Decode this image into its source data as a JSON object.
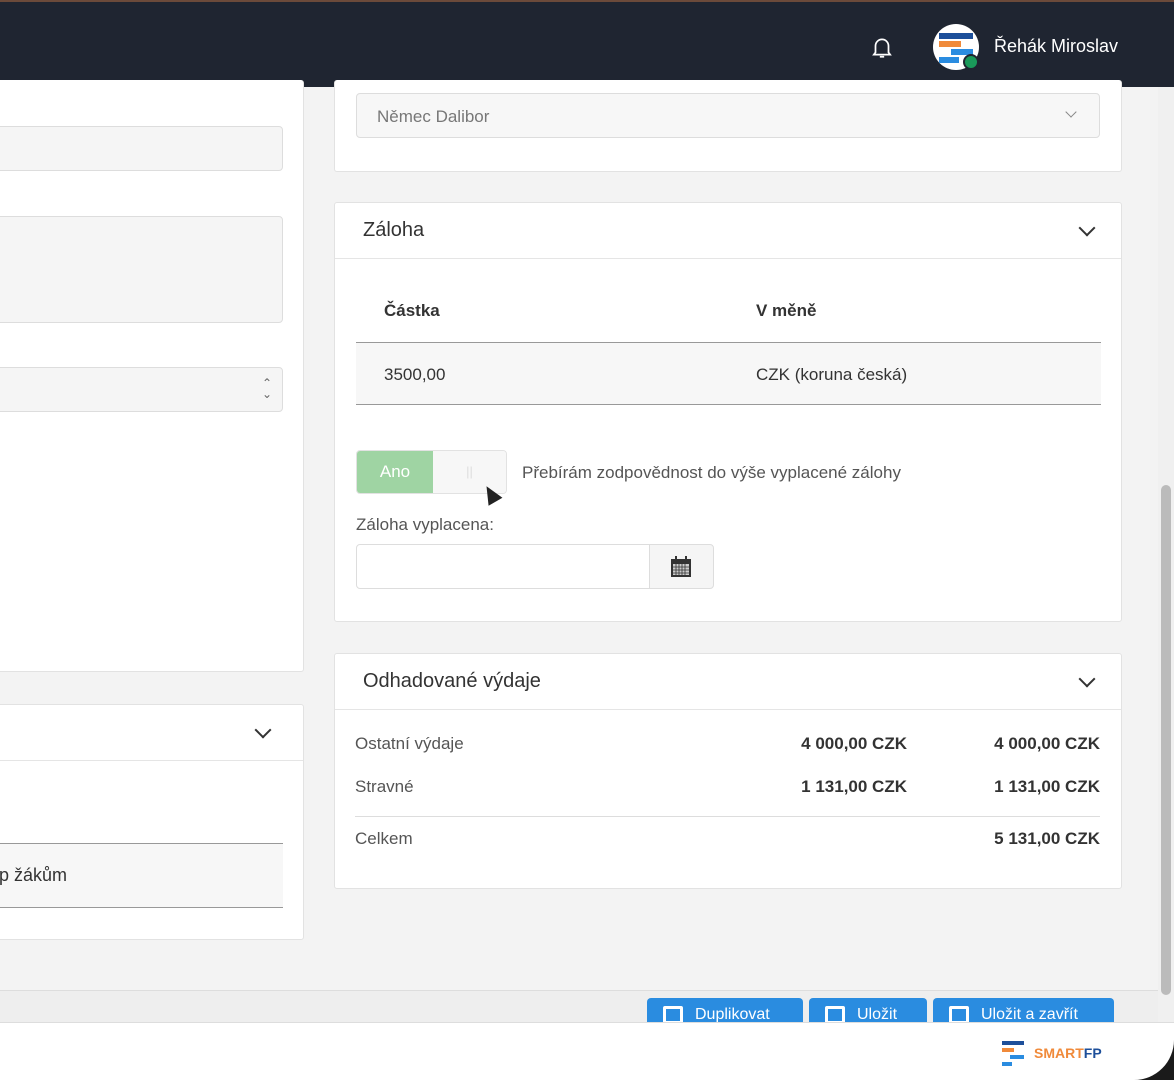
{
  "header": {
    "user_name": "Řehák Miroslav",
    "bell_icon": "bell-icon",
    "status": "online"
  },
  "top_card": {
    "select_value": "Němec Dalibor"
  },
  "left_panel": {
    "row_text": "p žákům"
  },
  "advance": {
    "title": "Záloha",
    "columns": [
      "Částka",
      "V měně"
    ],
    "rows": [
      [
        "3500,00",
        "CZK (koruna česká)"
      ]
    ],
    "toggle": {
      "on_label": "Ano",
      "off_label": "||",
      "state": "on"
    },
    "toggle_label": "Přebírám zodpovědnost do výše vyplacené zálohy",
    "paid_label": "Záloha vyplacena:",
    "paid_value": ""
  },
  "expenses": {
    "title": "Odhadované výdaje",
    "rows": [
      {
        "label": "Ostatní výdaje",
        "v1": "4 000,00 CZK",
        "v2": "4 000,00 CZK"
      },
      {
        "label": "Stravné",
        "v1": "1 131,00 CZK",
        "v2": "1 131,00 CZK"
      }
    ],
    "total_label": "Celkem",
    "total_value": "5 131,00 CZK"
  },
  "footer": {
    "buttons": [
      "Duplikovat",
      "Uložit",
      "Uložit a zavřít"
    ],
    "logo": "SMARTFP"
  },
  "colors": {
    "topbar": "#1f2531",
    "primary": "#2a8ce0",
    "toggle_on": "#9fd4a3",
    "logo_orange": "#f08a3a",
    "logo_blue": "#1d4f9a"
  }
}
